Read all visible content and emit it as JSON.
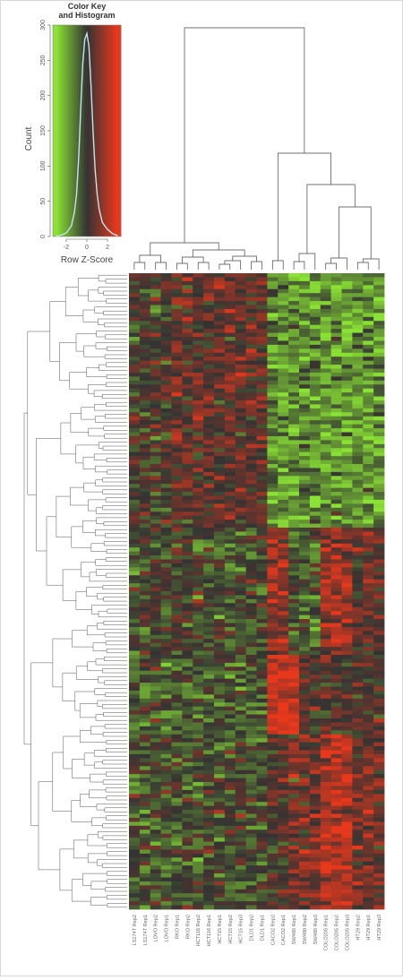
{
  "chart_data": {
    "type": "heatmap",
    "color_key": {
      "title_line1": "Color Key",
      "title_line2": "and Histogram",
      "ylabel": "Count",
      "xlabel": "Row Z-Score",
      "x_ticks": [
        "-2",
        "0",
        "2"
      ],
      "y_ticks": [
        "0",
        "50",
        "100",
        "150",
        "200",
        "250",
        "300"
      ],
      "xlim": [
        -3.3,
        3.3
      ],
      "ylim": [
        0,
        300
      ],
      "palette": {
        "low": "#8ae234",
        "mid": "#333333",
        "high": "#e8381c"
      },
      "histogram": {
        "x": [
          -3.0,
          -2.5,
          -2.0,
          -1.5,
          -1.2,
          -1.0,
          -0.8,
          -0.6,
          -0.4,
          -0.2,
          0.0,
          0.2,
          0.4,
          0.6,
          0.8,
          1.0,
          1.2,
          1.5,
          2.0,
          2.5,
          3.0
        ],
        "counts": [
          0,
          2,
          5,
          15,
          35,
          60,
          110,
          180,
          245,
          280,
          288,
          270,
          215,
          150,
          95,
          60,
          38,
          20,
          10,
          4,
          1
        ]
      }
    },
    "columns": [
      "LS174T Rep2",
      "LS174T Rep1",
      "LOVO Rep2",
      "LOVO Rep1",
      "RKO Rep1",
      "RKO Rep2",
      "HCT116 Rep2",
      "HCT116 Rep1",
      "HCT15 Rep1",
      "HCT15 Rep2",
      "HCT15 Rep3",
      "DLD1 Rep2",
      "DLD1 Rep1",
      "CACO2 Rep2",
      "CACO2 Rep1",
      "SW480 Rep1",
      "SW480 Rep2",
      "SW480 Rep3",
      "COLO205 Rep1",
      "COLO205 Rep2",
      "COLO205 Rep3",
      "HT29 Rep2",
      "HT29 Rep1",
      "HT29 Rep3"
    ],
    "n_rows": 160
  }
}
